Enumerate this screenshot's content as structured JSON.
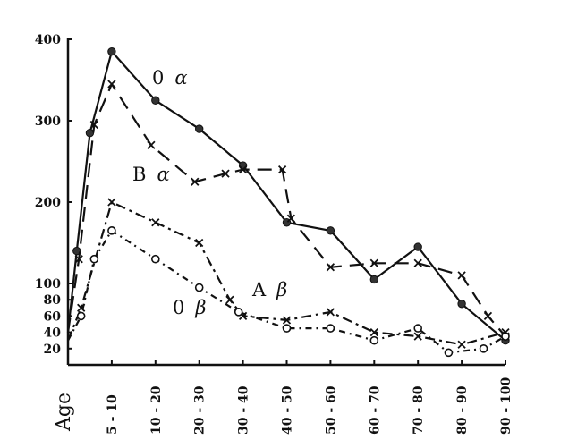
{
  "chart_data": {
    "type": "line",
    "title": "",
    "xlabel": "Age",
    "ylabel": "",
    "ylim": [
      0,
      400
    ],
    "y_ticks": [
      20,
      40,
      60,
      80,
      100,
      200,
      300,
      400
    ],
    "x_ticks": [
      "5 - 10",
      "10 - 20",
      "20 - 30",
      "30 - 40",
      "40 - 50",
      "50 - 60",
      "60 - 70",
      "70 - 80",
      "80 - 90",
      "90 - 100"
    ],
    "grid": false,
    "series": [
      {
        "name": "0 α",
        "label_parts": [
          "0",
          "α"
        ],
        "style": "solid",
        "marker": "filled-circle",
        "x": [
          0,
          0.2,
          0.5,
          1,
          2,
          3,
          4,
          5,
          6,
          7,
          8,
          9,
          10
        ],
        "y": [
          40,
          140,
          285,
          385,
          325,
          290,
          245,
          175,
          165,
          105,
          145,
          75,
          30
        ]
      },
      {
        "name": "B α",
        "label_parts": [
          "B",
          "α"
        ],
        "style": "dashed",
        "marker": "x",
        "x": [
          0,
          0.25,
          0.6,
          1,
          1.9,
          2.9,
          3.6,
          4,
          4.9,
          5.1,
          6,
          7,
          8,
          9,
          9.6,
          10
        ],
        "y": [
          40,
          130,
          295,
          345,
          270,
          225,
          235,
          240,
          240,
          180,
          120,
          125,
          125,
          110,
          60,
          35
        ]
      },
      {
        "name": "A β",
        "label_parts": [
          "A",
          "β"
        ],
        "style": "dash-dot",
        "marker": "x",
        "x": [
          0,
          0.3,
          1,
          2,
          3,
          3.7,
          4,
          5,
          6,
          7,
          8,
          9,
          10
        ],
        "y": [
          30,
          70,
          200,
          175,
          150,
          80,
          60,
          55,
          65,
          40,
          35,
          25,
          40
        ]
      },
      {
        "name": "0 β",
        "label_parts": [
          "0",
          "β"
        ],
        "style": "dotted-dash",
        "marker": "open-circle",
        "x": [
          0,
          0.3,
          0.6,
          1,
          2,
          3,
          3.9,
          5,
          6,
          7,
          8,
          8.7,
          9.5,
          10
        ],
        "y": [
          30,
          60,
          130,
          165,
          130,
          95,
          65,
          45,
          45,
          30,
          45,
          15,
          20,
          35
        ]
      }
    ]
  }
}
